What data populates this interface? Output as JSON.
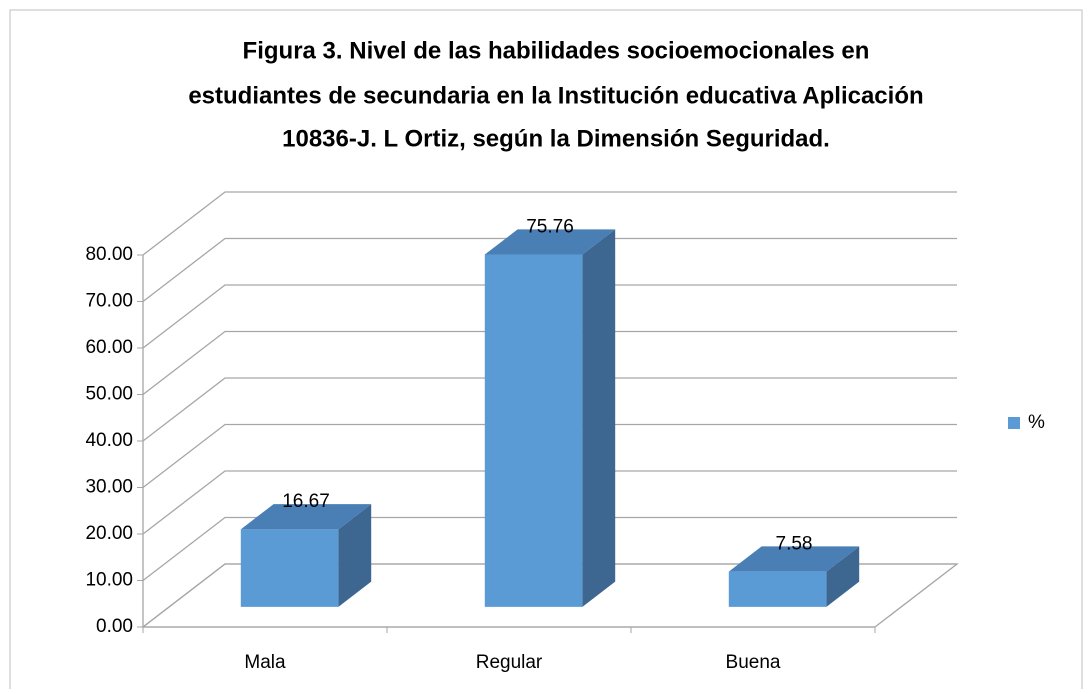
{
  "chart_data": {
    "type": "bar3d",
    "title": [
      "Figura 3. Nivel de las habilidades socioemocionales en",
      "estudiantes de secundaria en la Institución educativa Aplicación",
      "10836-J. L Ortiz, según la Dimensión Seguridad."
    ],
    "categories": [
      "Mala",
      "Regular",
      "Buena"
    ],
    "series": [
      {
        "name": "%",
        "color": "#5b9bd5",
        "values": [
          16.67,
          75.76,
          7.58
        ]
      }
    ],
    "ylim": [
      0,
      80
    ],
    "yticks": [
      {
        "value": 0,
        "label": "0.00"
      },
      {
        "value": 10,
        "label": "10.00"
      },
      {
        "value": 20,
        "label": "20.00"
      },
      {
        "value": 30,
        "label": "30.00"
      },
      {
        "value": 40,
        "label": "40.00"
      },
      {
        "value": 50,
        "label": "50.00"
      },
      {
        "value": 60,
        "label": "60.00"
      },
      {
        "value": 70,
        "label": "70.00"
      },
      {
        "value": 80,
        "label": "80.00"
      }
    ],
    "grid": true,
    "legend": "right"
  }
}
